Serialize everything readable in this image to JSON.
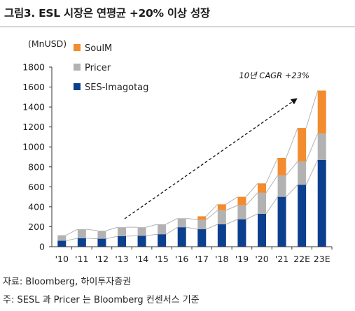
{
  "figure": {
    "title": "그림3. ESL 시장은 연평균 +20% 이상 성장",
    "source": "자료: Bloomberg, 하이투자증권",
    "note": "주: SESL 과 Pricer 는 Bloomberg 컨센서스 기준"
  },
  "colors": {
    "ses_imagotag": "#0d3f8f",
    "pricer": "#b2b2b2",
    "soulm": "#f28c2e",
    "envelope": "#b3b3b3",
    "arrow": "#111111"
  },
  "chart_data": {
    "type": "bar",
    "stacked": true,
    "unit": "(MnUSD)",
    "categories": [
      "'10",
      "'11",
      "'12",
      "'13",
      "'14",
      "'15",
      "'16",
      "'17",
      "'18",
      "'19",
      "'20",
      "'21",
      "22E",
      "23E"
    ],
    "series": [
      {
        "name": "SES-Imagotag",
        "values": [
          60,
          85,
          80,
          105,
          110,
          125,
          195,
          175,
          225,
          275,
          330,
          500,
          620,
          870
        ]
      },
      {
        "name": "Pricer",
        "values": [
          55,
          90,
          80,
          90,
          85,
          100,
          90,
          95,
          140,
          140,
          210,
          215,
          235,
          265
        ]
      },
      {
        "name": "SoulM",
        "values": [
          0,
          0,
          0,
          0,
          0,
          0,
          0,
          35,
          60,
          85,
          95,
          175,
          335,
          430
        ]
      }
    ],
    "ylim": [
      0,
      1800
    ],
    "yticks": [
      0,
      200,
      400,
      600,
      800,
      1000,
      1200,
      1400,
      1600,
      1800
    ],
    "legend_position": "top-left",
    "annotation": "10년 CAGR +23%"
  }
}
